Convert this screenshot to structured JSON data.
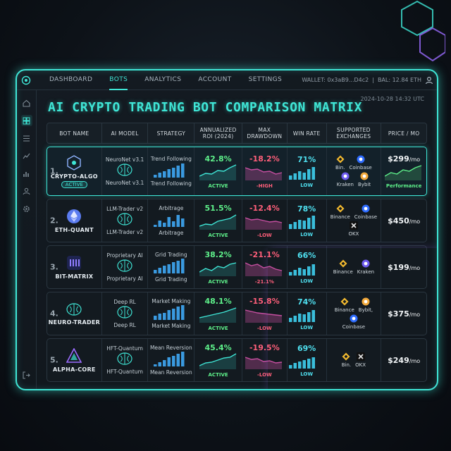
{
  "topbar": {
    "tabs": [
      "DASHBOARD",
      "BOTS",
      "ANALYTICS",
      "ACCOUNT",
      "SETTINGS"
    ],
    "active_tab": "BOTS",
    "wallet": "WALLET: 0x3aB9...D4c2",
    "balance": "BAL: 12.84 ETH"
  },
  "timestamp": "2024-10-28 14:32 UTC",
  "title": "AI CRYPTO TRADING BOT COMPARISON MATRIX",
  "headers": [
    "BOT NAME",
    "AI MODEL",
    "STRATEGY",
    "ANNUALIZED ROI (2024)",
    "MAX DRAWDOWN",
    "WIN RATE",
    "SUPPORTED EXCHANGES",
    "PRICE / MO"
  ],
  "rows": [
    {
      "rank": "1.",
      "name": "CRYPTO-ALGO",
      "status": "ACTIVE",
      "model": "NeuroNet v3.1",
      "model2": "NeuroNet v3.1",
      "strategy": "Trend Following",
      "strategy2": "Trend Following",
      "roi": "42.8%",
      "roi_tag": "ACTIVE",
      "dd": "-18.2%",
      "dd_tag": "-HIGH",
      "win": "71%",
      "win_tag": "LOW",
      "exchanges": [
        "Bin.",
        "Coinbase",
        "Kraken",
        "Bybit"
      ],
      "price": "$299",
      "unit": "/mo",
      "extra": "Performance"
    },
    {
      "rank": "2.",
      "name": "ETH-QUANT",
      "model": "LLM-Trader v2",
      "model2": "LLM-Trader v2",
      "strategy": "Arbitrage",
      "strategy2": "Arbitrage",
      "roi": "51.5%",
      "roi_tag": "ACTIVE",
      "dd": "-12.4%",
      "dd_tag": "-LOW",
      "win": "78%",
      "win_tag": "LOW",
      "exchanges": [
        "Binance",
        "Coinbase",
        "OKX"
      ],
      "price": "$450",
      "unit": "/mo"
    },
    {
      "rank": "3.",
      "name": "BIT-MATRIX",
      "model": "Proprietary AI",
      "model2": "Proprietary AI",
      "strategy": "Grid Trading",
      "strategy2": "Grid Trading",
      "roi": "38.2%",
      "roi_tag": "ACTIVE",
      "dd": "-21.1%",
      "dd_tag": "-21.1%",
      "win": "66%",
      "win_tag": "LOW",
      "exchanges": [
        "Binance",
        "Kraken"
      ],
      "price": "$199",
      "unit": "/mo"
    },
    {
      "rank": "4.",
      "name": "NEURO-TRADER",
      "model": "Deep RL",
      "model2": "Deep RL",
      "strategy": "Market Making",
      "strategy2": "Market Making",
      "roi": "48.1%",
      "roi_tag": "ACTIVE",
      "dd": "-15.8%",
      "dd_tag": "-LOW",
      "win": "74%",
      "win_tag": "LOW",
      "exchanges": [
        "Binance",
        "Bybit,",
        "Coinbase"
      ],
      "price": "$375",
      "unit": "/mo"
    },
    {
      "rank": "5.",
      "name": "ALPHA-CORE",
      "model": "HFT-Quantum",
      "model2": "HFT-Quantum",
      "strategy": "Mean Reversion",
      "strategy2": "Mean Reversion",
      "roi": "45.4%",
      "roi_tag": "ACTIVE",
      "dd": "-19.5%",
      "dd_tag": "-LOW",
      "win": "69%",
      "win_tag": "LOW",
      "exchanges": [
        "Bin.",
        "OKX"
      ],
      "price": "$249",
      "unit": "/mo"
    }
  ],
  "colors": {
    "accent": "#3fe6d6",
    "positive": "#5ef08a",
    "negative": "#ff5f7a",
    "purple": "#9b6cff"
  },
  "icons": [
    "shield-icon",
    "grid-icon",
    "list-icon",
    "chart-icon",
    "bar-chart-icon",
    "user-icon",
    "gear-icon",
    "logout-icon"
  ]
}
